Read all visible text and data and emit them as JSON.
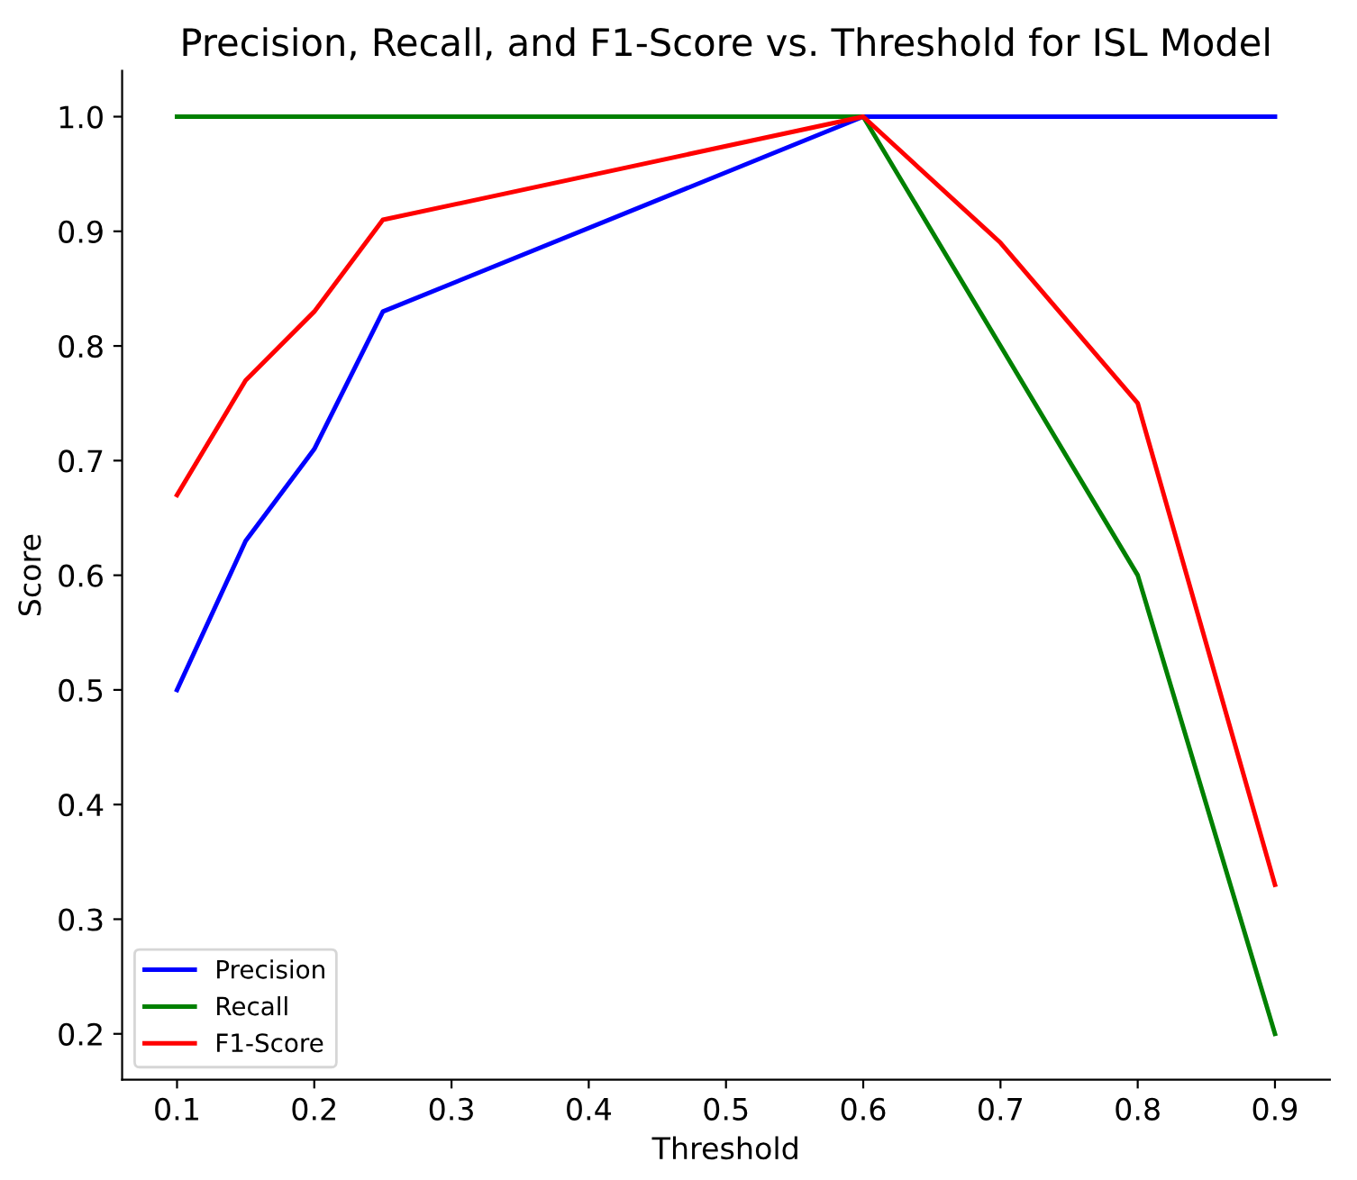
{
  "chart_data": {
    "type": "line",
    "title": "Precision, Recall, and F1-Score vs. Threshold for ISL Model",
    "xlabel": "Threshold",
    "ylabel": "Score",
    "x": [
      0.1,
      0.15,
      0.2,
      0.25,
      0.6,
      0.7,
      0.8,
      0.9
    ],
    "series": [
      {
        "name": "Precision",
        "color": "#0000ff",
        "values": [
          0.5,
          0.63,
          0.71,
          0.83,
          1.0,
          1.0,
          1.0,
          1.0
        ]
      },
      {
        "name": "Recall",
        "color": "#008000",
        "values": [
          1.0,
          1.0,
          1.0,
          1.0,
          1.0,
          0.8,
          0.6,
          0.2
        ]
      },
      {
        "name": "F1-Score",
        "color": "#ff0000",
        "values": [
          0.67,
          0.77,
          0.83,
          0.91,
          1.0,
          0.89,
          0.75,
          0.33
        ]
      }
    ],
    "xlim": [
      0.06,
      0.94
    ],
    "ylim": [
      0.16,
      1.04
    ],
    "xticks": [
      0.1,
      0.2,
      0.3,
      0.4,
      0.5,
      0.6,
      0.7,
      0.8,
      0.9
    ],
    "yticks": [
      0.2,
      0.3,
      0.4,
      0.5,
      0.6,
      0.7,
      0.8,
      0.9,
      {
        "value": 1.0,
        "label": "1.0"
      }
    ],
    "grid": false,
    "legend": "bottom left",
    "marker": "none",
    "line_style": "solid"
  }
}
